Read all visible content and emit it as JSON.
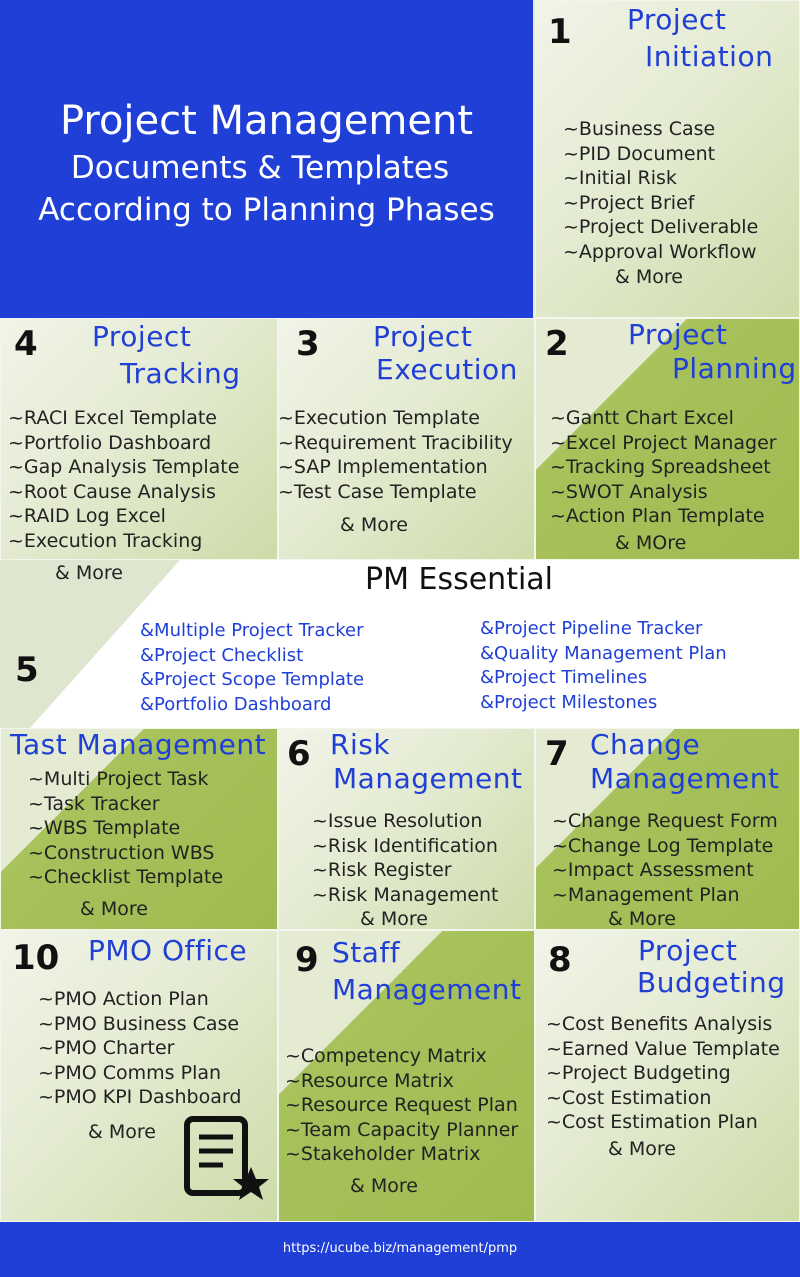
{
  "header": {
    "title_lines": [
      "Project Management",
      "Documents & Templates",
      "According to Planning Phases"
    ]
  },
  "panels": [
    {
      "number": "1",
      "title_lines": [
        "Project",
        "Initiation"
      ],
      "items": [
        "~Business Case",
        "~PID Document",
        "~Initial Risk",
        "~Project Brief",
        "~Project Deliverable",
        "~Approval Workflow"
      ],
      "more": "& More"
    },
    {
      "number": "4",
      "title_lines": [
        "Project",
        "Tracking"
      ],
      "items": [
        "~RACI Excel Template",
        "~Portfolio Dashboard",
        "~Gap Analysis Template",
        "~Root Cause Analysis",
        "~RAID Log Excel",
        "~Execution Tracking"
      ],
      "more": "& More"
    },
    {
      "number": "3",
      "title_lines": [
        "Project",
        "Execution"
      ],
      "items": [
        "~Execution Template",
        "~Requirement Tracibility",
        "~SAP Implementation",
        "~Test Case Template"
      ],
      "more": "& More"
    },
    {
      "number": "2",
      "title_lines": [
        "Project",
        "Planning"
      ],
      "items": [
        "~Gantt Chart Excel",
        "~Excel Project Manager",
        "~Tracking Spreadsheet",
        "~SWOT Analysis",
        "~Action Plan Template"
      ],
      "more": "& MOre"
    },
    {
      "title_lines": [
        "Tast Management"
      ],
      "items": [
        "~Multi Project Task",
        "~Task Tracker",
        "~WBS Template",
        "~Construction WBS",
        "~Checklist Template"
      ],
      "more": "& More"
    },
    {
      "number": "6",
      "title_lines": [
        "Risk",
        "Management"
      ],
      "items": [
        "~Issue Resolution",
        "~Risk Identification",
        "~Risk Register",
        "~Risk Management"
      ],
      "more": "& More"
    },
    {
      "number": "7",
      "title_lines": [
        "Change",
        "Management"
      ],
      "items": [
        "~Change Request Form",
        "~Change Log Template",
        "~Impact Assessment",
        "~Management Plan"
      ],
      "more": "& More"
    },
    {
      "number": "10",
      "title_lines": [
        "PMO Office"
      ],
      "items": [
        "~PMO Action Plan",
        "~PMO Business Case",
        "~PMO Charter",
        "~PMO Comms Plan",
        "~PMO KPI Dashboard"
      ],
      "more": "& More"
    },
    {
      "number": "9",
      "title_lines": [
        "Staff",
        "Management"
      ],
      "items": [
        "~Competency Matrix",
        "~Resource Matrix",
        "~Resource Request Plan",
        "~Team Capacity Planner",
        "~Stakeholder Matrix"
      ],
      "more": "& More"
    },
    {
      "number": "8",
      "title_lines": [
        "Project",
        "Budgeting"
      ],
      "items": [
        "~Cost Benefits Analysis",
        "~Earned Value Template",
        "~Project Budgeting",
        "~Cost Estimation",
        "~Cost Estimation Plan"
      ],
      "more": "& More"
    }
  ],
  "essential": {
    "number": "5",
    "title": "PM Essential",
    "items_left": [
      "&Multiple Project Tracker",
      "&Project Checklist",
      "&Project Scope Template",
      "&Portfolio Dashboard"
    ],
    "items_right": [
      "&Project Pipeline Tracker",
      "&Quality Management Plan",
      "&Project Timelines",
      "&Project Milestones"
    ]
  },
  "footer": {
    "url": "https://ucube.biz/management/pmp"
  }
}
